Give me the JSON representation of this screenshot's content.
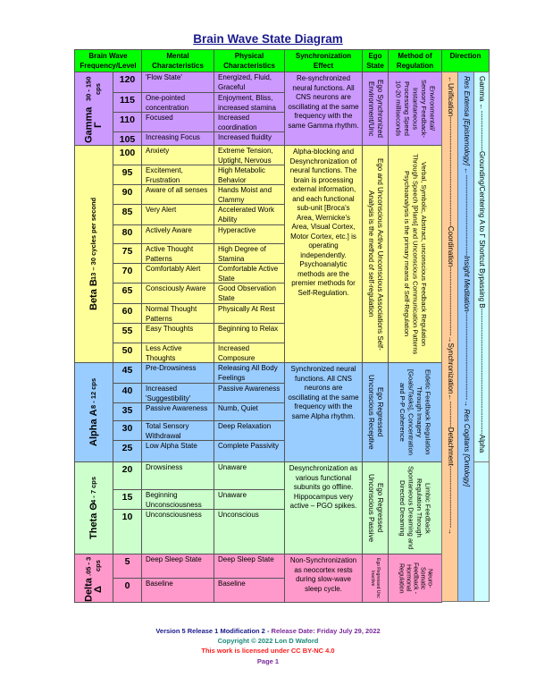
{
  "title": "Brain Wave State Diagram",
  "headers": {
    "brainwave": "Brain Wave Frequency/Level",
    "mental": "Mental Characteristics",
    "physical": "Physical Characteristics",
    "sync": "Synchronization Effect",
    "ego": "Ego State",
    "method": "Method of Regulation",
    "direction": "Direction"
  },
  "colors": {
    "header": "#00ff00",
    "gamma": "#cc99ff",
    "beta": "#ffff99",
    "alpha": "#99ccff",
    "theta": "#ccffcc",
    "delta": "#ff99cc",
    "dir_orange": "#ffcc99",
    "dir_blue": "#99ccff",
    "dir_cyan": "#ccffff"
  },
  "bands": [
    {
      "key": "gamma",
      "name": "Gamma Γ",
      "range": "30 - 150 cps",
      "sync": "Re-synchronized neural functions. All CNS neurons are oscillating at the same frequency with the same Gamma rhythm.",
      "ego": "Ego Synchronized Environment/Unc",
      "method": "Environmental/ Sensory Feedback- Instantaneous Processing Speed 10-20 milliseconds",
      "rows": [
        {
          "level": "120",
          "mental": "'Flow State'",
          "physical": "Energized, Fluid, Graceful"
        },
        {
          "level": "115",
          "mental": "One-pointed concentration",
          "physical": "Enjoyment, Bliss, increased stamina"
        },
        {
          "level": "110",
          "mental": "Focused",
          "physical": "Increased coordination"
        },
        {
          "level": "105",
          "mental": "Increasing Focus",
          "physical": "Increased fluidity"
        }
      ]
    },
    {
      "key": "beta",
      "name": "Beta Β",
      "range": "13 – 30 cycles per second",
      "sync": "Alpha-blocking and Desynchronization of neural functions. The brain is processing external information, and each functional sub-unit [Broca's Area, Wernicke's Area, Visual Cortex, Motor Cortex, etc.] is operating independently. Psychoanalytic methods are the premier methods for Self-Regulation.",
      "ego": "Ego and Unconscious Active Unconscious Associations Self-Analysis is the method of self-regulation",
      "method": "Verbal, Symbolic, Abstract, unconscious Feedback Regulation Through Speech [Plans] and Unconscious Communication Patterns Psychoanalysis is the primary means of Self-Regulation",
      "rows": [
        {
          "level": "100",
          "mental": "Anxiety",
          "physical": "Extreme Tension, Uptight, Nervous"
        },
        {
          "level": "95",
          "mental": "Excitement, Frustration",
          "physical": "High Metabolic Behavior"
        },
        {
          "level": "90",
          "mental": "Aware of all senses",
          "physical": "Hands Moist and Clammy"
        },
        {
          "level": "85",
          "mental": "Very Alert",
          "physical": "Accelerated Work Ability"
        },
        {
          "level": "80",
          "mental": "Actively Aware",
          "physical": "Hyperactive"
        },
        {
          "level": "75",
          "mental": "Active Thought Patterns",
          "physical": "High Degree of Stamina"
        },
        {
          "level": "70",
          "mental": "Comfortably Alert",
          "physical": "Comfortable Active State"
        },
        {
          "level": "65",
          "mental": "Consciously Aware",
          "physical": "Good Observation State"
        },
        {
          "level": "60",
          "mental": "Normal Thought Patterns",
          "physical": "Physically At Rest"
        },
        {
          "level": "55",
          "mental": "Easy Thoughts",
          "physical": "Beginning to Relax"
        },
        {
          "level": "50",
          "mental": "Less Active Thoughts",
          "physical": "Increased Composure"
        }
      ]
    },
    {
      "key": "alpha",
      "name": "Alpha Α",
      "range": "8 - 12 cps",
      "sync": "Synchronized neural functions. All CNS neurons are oscillating at the same frequency with the same Alpha rhythm.",
      "ego": "Ego Regressed Unconscious Receptive",
      "method": "Eidetic Feedback Regulation Through Imagery [Goals/Tasks], Concentration and P-P Coherence",
      "rows": [
        {
          "level": "45",
          "mental": "Pre-Drowsiness",
          "physical": "Releasing All Body Feelings"
        },
        {
          "level": "40",
          "mental": "Increased 'Suggestibility'",
          "physical": "Passive Awareness"
        },
        {
          "level": "35",
          "mental": "Passive Awareness",
          "physical": "Numb, Quiet"
        },
        {
          "level": "30",
          "mental": "Total Sensory Withdrawal",
          "physical": "Deep Relaxation"
        },
        {
          "level": "25",
          "mental": "Low Alpha State",
          "physical": "Complete Passivity"
        }
      ]
    },
    {
      "key": "theta",
      "name": "Theta Θ",
      "range": "4 - 7 cps",
      "sync": "Desynchronization as various functional subunits go offline. Hippocampus very active – PGO spikes.",
      "ego": "Ego Regressed Unconscious Passive",
      "method": "Limbic Feedback Regulation Through Spontaneous Dreaming and Directed Dreaming",
      "rows": [
        {
          "level": "20",
          "mental": "Drowsiness",
          "physical": "Unaware"
        },
        {
          "level": "15",
          "mental": "Beginning Unconsciousness",
          "physical": "Unaware"
        },
        {
          "level": "10",
          "mental": "Unconsciousness",
          "physical": "Unconscious"
        }
      ]
    },
    {
      "key": "delta",
      "name": "Delta Δ",
      "range": ".05 - 3 cps",
      "sync": "Non-Synchronization as neocortex rests during slow-wave sleep cycle.",
      "ego": "Ego Regressed Unc Inactive",
      "method": "Neuro-Somatic Feedback - Hormonal Regulation",
      "rows": [
        {
          "level": "5",
          "mental": "Deep Sleep State",
          "physical": "Deep Sleep State"
        },
        {
          "level": "0",
          "mental": "Baseline",
          "physical": "Baseline"
        }
      ]
    }
  ],
  "direction": {
    "orange": [
      "←Unification-----------------",
      "-----------------------------Coordination-----------------------------",
      "→Synchronization←",
      "-----------Detachment--------------------------→"
    ],
    "blue": [
      "Res Extensa [Epistemology] ←----------------------------------Insight Meditation-------------------------------------→ Res Cogitans [Ontology]"
    ],
    "cyan": [
      "Gamma ←-----------------Grounding/Centering Α to Γ Shortcut Bypassing Β-----------------------------------------------------Alpha"
    ]
  },
  "footer": {
    "version": "Version 5 Release 1 Modification 2 - ",
    "release": "Release Date:  Friday July 29, 2022",
    "copyright": "Copyright © 2022 Lon D Waford",
    "license": "This work is licensed under CC BY-NC 4.0",
    "page": "Page 1"
  }
}
